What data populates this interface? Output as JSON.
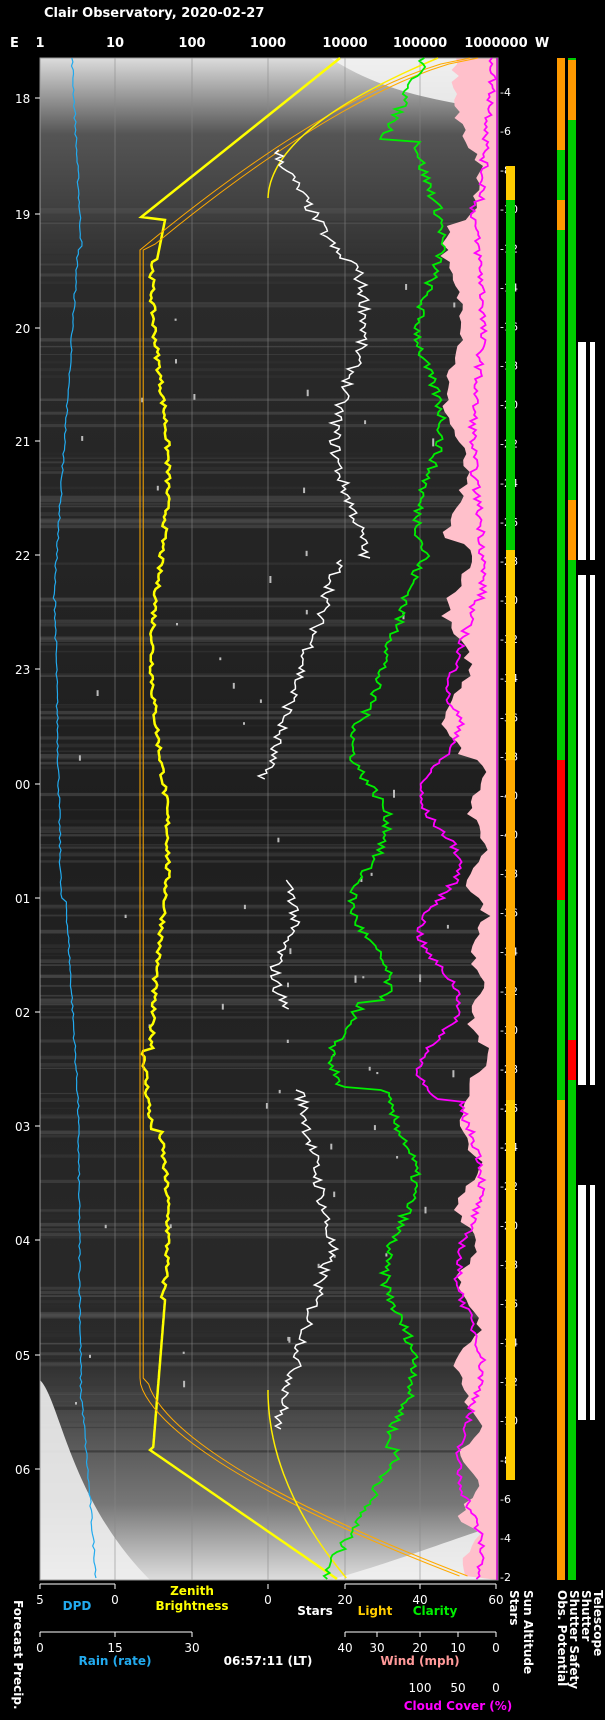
{
  "chart_data": {
    "type": "line",
    "title": "Clair Observatory, 2020-02-27",
    "x_log_labels": [
      "E",
      "1",
      "10",
      "100",
      "1000",
      "10000",
      "100000",
      "1000000",
      "W"
    ],
    "time_ticks": [
      "18",
      "19",
      "20",
      "21",
      "22",
      "23",
      "00",
      "01",
      "02",
      "03",
      "04",
      "05",
      "06"
    ],
    "sun_altitude_ticks": [
      "-4",
      "-6",
      "-8",
      "-10",
      "-12",
      "-14",
      "-16",
      "-18",
      "-20",
      "-22",
      "-24",
      "-26",
      "-28",
      "-30",
      "-32",
      "-34",
      "-36",
      "-38",
      "-40",
      "-40",
      "-38",
      "-36",
      "-34",
      "-32",
      "-30",
      "-28",
      "-26",
      "-24",
      "-22",
      "-20",
      "-18",
      "-16",
      "-14",
      "-12",
      "-10",
      "-8",
      "-6",
      "-4",
      "-2"
    ],
    "bottom_axes": {
      "dpd": {
        "label": "DPD",
        "ticks": [
          "5",
          "0"
        ]
      },
      "zenith": {
        "label": "Zenith\nBrightness",
        "ticks": [
          "0"
        ]
      },
      "stars_light_clarity": {
        "labels": [
          "Stars",
          "Light",
          "Clarity"
        ],
        "ticks": [
          "20",
          "40",
          "60"
        ]
      },
      "rain": {
        "label": "Rain (rate)",
        "ticks": [
          "0",
          "15",
          "30"
        ]
      },
      "timestamp": "06:57:11 (LT)",
      "wind": {
        "label": "Wind (mph)",
        "ticks": [
          "40",
          "30",
          "20",
          "10",
          "0"
        ]
      },
      "cloud": {
        "label": "Cloud Cover (%)",
        "ticks": [
          "100",
          "50",
          "0"
        ]
      }
    },
    "vertical_labels": [
      "Forecast Precip.",
      "Stars",
      "Sun Altitude",
      "Obs. Potential",
      "Shutter Safety",
      "Shutter",
      "Telescope"
    ],
    "colors": {
      "dpd": "#22aaee",
      "rain": "#22aaee",
      "zenith": "#ffff00",
      "light": "#ffcc00",
      "stars": "#ffffff",
      "clarity": "#00ff00",
      "wind": "#ff9999",
      "cloud": "#ff00ff"
    }
  }
}
